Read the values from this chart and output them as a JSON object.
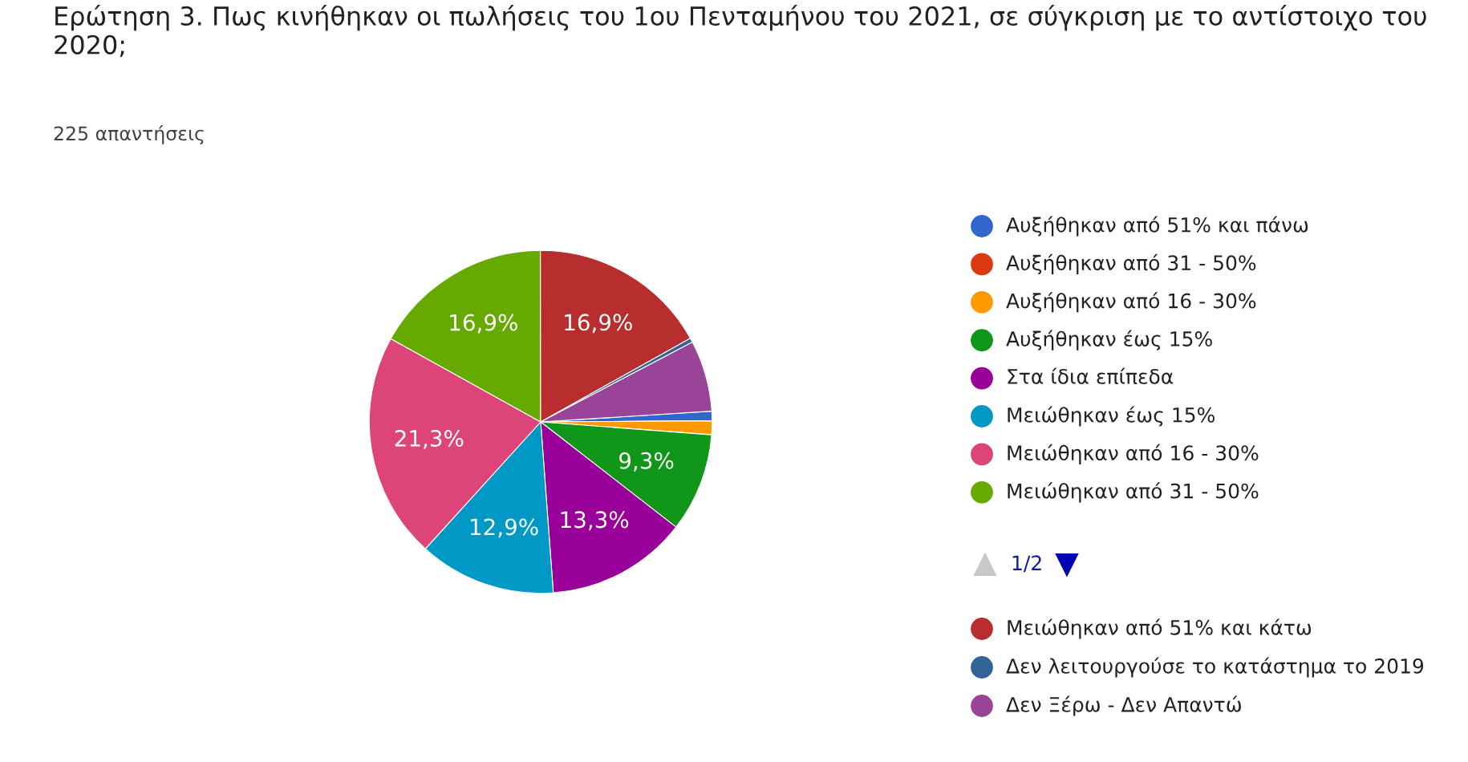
{
  "chart_data": {
    "type": "pie",
    "title": "Ερώτηση 3. Πως κινήθηκαν οι πωλήσεις του 1ου Πενταμήνου του 2021, σε σύγκριση με το αντίστοιχο του 2020;",
    "subtitle": "225 απαντήσεις",
    "categories": [
      "Αυξήθηκαν από 51% και πάνω",
      "Αυξήθηκαν από 31 - 50%",
      "Αυξήθηκαν από 16 - 30%",
      "Αυξήθηκαν έως 15%",
      "Στα ίδια επίπεδα",
      "Μειώθηκαν έως 15%",
      "Μειώθηκαν από 16 - 30%",
      "Μειώθηκαν από 31 - 50%",
      "Μειώθηκαν από 51% και κάτω",
      "Δεν λειτουργούσε το κατάστημα το 2019",
      "Δεν Ξέρω - Δεν Απαντώ"
    ],
    "values": [
      0.9,
      0,
      1.3,
      9.3,
      13.3,
      12.9,
      21.3,
      16.9,
      16.9,
      0.4,
      6.7
    ],
    "colors": [
      "#3366cc",
      "#dc3912",
      "#ff9900",
      "#109618",
      "#990099",
      "#0099c6",
      "#dd4477",
      "#66aa00",
      "#b82e2e",
      "#316395",
      "#994499"
    ],
    "value_labels": [
      null,
      null,
      null,
      "9,3%",
      "13,3%",
      "12,9%",
      "21,3%",
      "16,9%",
      "16,9%",
      null,
      null
    ],
    "annotations": [
      "1/2"
    ],
    "legend": "right"
  }
}
